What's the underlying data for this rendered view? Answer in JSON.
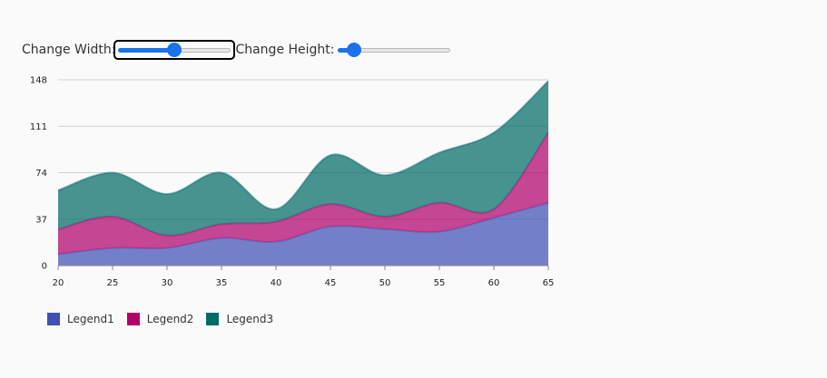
{
  "controls": {
    "width_label": "Change Width:",
    "height_label": "Change Height:",
    "width_slider_value": 0.5,
    "height_slider_value": 0.15
  },
  "chart_data": {
    "type": "area",
    "stacked": true,
    "x": [
      20,
      25,
      30,
      35,
      40,
      45,
      50,
      55,
      60,
      65
    ],
    "yticks": [
      0,
      37,
      74,
      111,
      148
    ],
    "ylim": [
      0,
      148
    ],
    "xlim": [
      20,
      65
    ],
    "grid": true,
    "legend_position": "bottom-left",
    "series": [
      {
        "name": "Legend1",
        "color": "#3f51b5",
        "values": [
          9,
          14,
          14,
          22,
          19,
          31,
          29,
          27,
          38,
          50
        ]
      },
      {
        "name": "Legend2",
        "color": "#b0006a",
        "values": [
          20,
          25,
          10,
          11,
          16,
          18,
          10,
          23,
          7,
          56
        ]
      },
      {
        "name": "Legend3",
        "color": "#006b66",
        "values": [
          31,
          35,
          33,
          41,
          10,
          39,
          33,
          40,
          61,
          41
        ]
      }
    ]
  }
}
